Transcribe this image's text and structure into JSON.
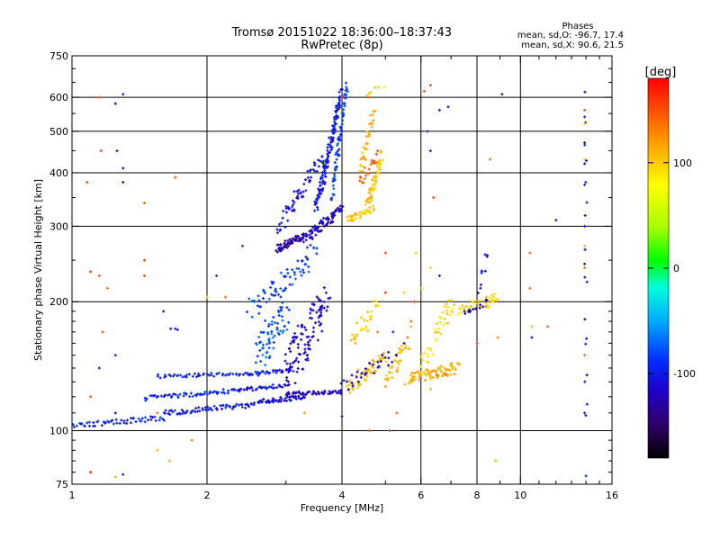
{
  "chart_data": {
    "type": "scatter",
    "title": "Tromsø 20151022 18:36:00–18:37:43",
    "subtitle": "RwPretec (8p)",
    "phase_info": {
      "heading": "Phases",
      "line_o": "mean, sd,O: -96.7, 17.4",
      "line_x": "mean, sd,X:  90.6, 21.5"
    },
    "xlabel": "Frequency [MHz]",
    "ylabel": "Stationary phase Virtual Height [km]",
    "x_scale": "log2",
    "y_scale": "log",
    "xlim": [
      1,
      16
    ],
    "ylim": [
      75,
      750
    ],
    "x_ticks": [
      1,
      2,
      4,
      6,
      8,
      10,
      16
    ],
    "x_tick_labels": [
      "1",
      "2",
      "4",
      "6",
      "8",
      "10",
      "16"
    ],
    "x_grid": [
      2,
      4,
      6,
      8,
      10
    ],
    "y_ticks": [
      75,
      100,
      200,
      300,
      400,
      500,
      600,
      750
    ],
    "y_tick_labels": [
      "75",
      "100",
      "200",
      "300",
      "400",
      "500",
      "600",
      "750"
    ],
    "y_grid": [
      100,
      200,
      300,
      400,
      500,
      600
    ],
    "grid": true,
    "colorbar": {
      "label": "[deg]",
      "range": [
        -180,
        180
      ],
      "ticks": [
        100,
        0,
        -100
      ],
      "tick_labels": [
        "100",
        "0",
        "-100"
      ]
    },
    "traces": [
      {
        "x0": 1.0,
        "x1": 1.6,
        "y0": 103,
        "y1": 107,
        "phase": -95,
        "n": 55,
        "jx": 0.02,
        "jy": 1.5
      },
      {
        "x0": 1.6,
        "x1": 2.6,
        "y0": 110,
        "y1": 115,
        "phase": -100,
        "n": 70,
        "jx": 0.02,
        "jy": 1.6
      },
      {
        "x0": 2.6,
        "x1": 3.3,
        "y0": 117,
        "y1": 120,
        "phase": -110,
        "n": 50,
        "jx": 0.02,
        "jy": 1.5
      },
      {
        "x0": 1.45,
        "x1": 2.3,
        "y0": 119,
        "y1": 124,
        "phase": -95,
        "n": 55,
        "jx": 0.02,
        "jy": 1.5
      },
      {
        "x0": 2.3,
        "x1": 3.0,
        "y0": 124,
        "y1": 128,
        "phase": -105,
        "n": 40,
        "jx": 0.02,
        "jy": 1.5
      },
      {
        "x0": 3.0,
        "x1": 4.0,
        "y0": 122,
        "y1": 123,
        "phase": -120,
        "n": 50,
        "jx": 0.02,
        "jy": 1.2
      },
      {
        "x0": 1.55,
        "x1": 2.5,
        "y0": 134,
        "y1": 136,
        "phase": -95,
        "n": 50,
        "jx": 0.02,
        "jy": 1.3
      },
      {
        "x0": 2.5,
        "x1": 3.1,
        "y0": 136,
        "y1": 138,
        "phase": -100,
        "n": 30,
        "jx": 0.02,
        "jy": 1.3
      },
      {
        "x0": 2.6,
        "x1": 3.0,
        "y0": 150,
        "y1": 190,
        "phase": -75,
        "n": 70,
        "jx": 0.06,
        "jy": 18
      },
      {
        "x0": 3.0,
        "x1": 3.7,
        "y0": 140,
        "y1": 200,
        "phase": -115,
        "n": 110,
        "jx": 0.06,
        "jy": 20
      },
      {
        "x0": 2.5,
        "x1": 3.5,
        "y0": 190,
        "y1": 260,
        "phase": -85,
        "n": 70,
        "jx": 0.06,
        "jy": 15
      },
      {
        "x0": 2.85,
        "x1": 3.3,
        "y0": 265,
        "y1": 285,
        "phase": -130,
        "n": 60,
        "jx": 0.03,
        "jy": 6
      },
      {
        "x0": 3.3,
        "x1": 4.0,
        "y0": 280,
        "y1": 330,
        "phase": -115,
        "n": 80,
        "jx": 0.03,
        "jy": 8
      },
      {
        "x0": 3.5,
        "x1": 4.0,
        "y0": 330,
        "y1": 620,
        "phase": -100,
        "n": 140,
        "jx": 0.03,
        "jy": 14
      },
      {
        "x0": 2.9,
        "x1": 3.6,
        "y0": 300,
        "y1": 430,
        "phase": -105,
        "n": 60,
        "jx": 0.05,
        "jy": 15
      },
      {
        "x0": 3.8,
        "x1": 4.1,
        "y0": 350,
        "y1": 640,
        "phase": -85,
        "n": 70,
        "jx": 0.02,
        "jy": 18
      },
      {
        "x0": 4.1,
        "x1": 4.7,
        "y0": 310,
        "y1": 330,
        "phase": 105,
        "n": 35,
        "jx": 0.03,
        "jy": 6
      },
      {
        "x0": 4.55,
        "x1": 4.9,
        "y0": 330,
        "y1": 440,
        "phase": 105,
        "n": 55,
        "jx": 0.03,
        "jy": 12
      },
      {
        "x0": 4.4,
        "x1": 4.7,
        "y0": 400,
        "y1": 560,
        "phase": 110,
        "n": 35,
        "jx": 0.03,
        "jy": 15
      },
      {
        "x0": 4.4,
        "x1": 4.8,
        "y0": 380,
        "y1": 440,
        "phase": 150,
        "n": 18,
        "jx": 0.03,
        "jy": 12
      },
      {
        "x0": 4.1,
        "x1": 5.0,
        "y0": 125,
        "y1": 150,
        "phase": 110,
        "n": 55,
        "jx": 0.05,
        "jy": 6
      },
      {
        "x0": 4.2,
        "x1": 4.8,
        "y0": 160,
        "y1": 200,
        "phase": 100,
        "n": 30,
        "jx": 0.05,
        "jy": 10
      },
      {
        "x0": 5.0,
        "x1": 5.6,
        "y0": 130,
        "y1": 160,
        "phase": 110,
        "n": 35,
        "jx": 0.05,
        "jy": 6
      },
      {
        "x0": 5.6,
        "x1": 7.2,
        "y0": 132,
        "y1": 140,
        "phase": 110,
        "n": 85,
        "jx": 0.05,
        "jy": 4
      },
      {
        "x0": 6.0,
        "x1": 7.0,
        "y0": 140,
        "y1": 200,
        "phase": 95,
        "n": 35,
        "jx": 0.05,
        "jy": 10
      },
      {
        "x0": 6.8,
        "x1": 8.8,
        "y0": 185,
        "y1": 205,
        "phase": 95,
        "n": 35,
        "jx": 0.05,
        "jy": 5
      },
      {
        "x0": 7.5,
        "x1": 8.5,
        "y0": 190,
        "y1": 200,
        "phase": -125,
        "n": 15,
        "jx": 0.05,
        "jy": 4
      },
      {
        "x0": 4.0,
        "x1": 5.2,
        "y0": 125,
        "y1": 150,
        "phase": -115,
        "n": 30,
        "jx": 0.05,
        "jy": 5
      },
      {
        "x0": 4.5,
        "x1": 4.9,
        "y0": 610,
        "y1": 640,
        "phase": 100,
        "n": 6,
        "jx": 0.05,
        "jy": 5
      },
      {
        "x0": 8.1,
        "x1": 8.4,
        "y0": 210,
        "y1": 260,
        "phase": -105,
        "n": 10,
        "jx": 0.04,
        "jy": 8
      },
      {
        "x0": 8.5,
        "x1": 8.8,
        "y0": 195,
        "y1": 205,
        "phase": 90,
        "n": 10,
        "jx": 0.04,
        "jy": 4
      },
      {
        "x0": 14.0,
        "x1": 14.0,
        "y0": 85,
        "y1": 600,
        "phase": -100,
        "n": 18,
        "jx": 0.02,
        "jy": 20
      }
    ],
    "points": [
      [
        1.15,
        600,
        150
      ],
      [
        1.25,
        580,
        -110
      ],
      [
        1.3,
        610,
        -105
      ],
      [
        1.08,
        380,
        150
      ],
      [
        1.16,
        450,
        160
      ],
      [
        1.26,
        450,
        -105
      ],
      [
        1.3,
        410,
        -110
      ],
      [
        1.3,
        380,
        -105
      ],
      [
        1.45,
        340,
        140
      ],
      [
        1.7,
        390,
        150
      ],
      [
        1.1,
        235,
        160
      ],
      [
        1.15,
        230,
        150
      ],
      [
        1.2,
        215,
        140
      ],
      [
        1.45,
        250,
        160
      ],
      [
        1.45,
        230,
        150
      ],
      [
        1.17,
        170,
        150
      ],
      [
        1.1,
        120,
        150
      ],
      [
        1.15,
        140,
        -110
      ],
      [
        1.25,
        150,
        -105
      ],
      [
        1.25,
        110,
        -110
      ],
      [
        1.55,
        90,
        110
      ],
      [
        1.65,
        85,
        110
      ],
      [
        1.1,
        80,
        170
      ],
      [
        1.25,
        78,
        110
      ],
      [
        1.3,
        79,
        -95
      ],
      [
        1.55,
        110,
        140
      ],
      [
        1.6,
        190,
        -110
      ],
      [
        1.66,
        173,
        -100
      ],
      [
        1.7,
        173,
        -105
      ],
      [
        1.72,
        172,
        -100
      ],
      [
        2.1,
        230,
        -95
      ],
      [
        2.0,
        205,
        110
      ],
      [
        2.2,
        205,
        140
      ],
      [
        2.4,
        270,
        -90
      ],
      [
        1.85,
        95,
        130
      ],
      [
        3.3,
        110,
        120
      ],
      [
        4.0,
        108,
        -105
      ],
      [
        5.1,
        100,
        150
      ],
      [
        4.0,
        600,
        150
      ],
      [
        4.6,
        600,
        150
      ],
      [
        6.1,
        620,
        150
      ],
      [
        6.3,
        640,
        160
      ],
      [
        5.0,
        260,
        150
      ],
      [
        5.0,
        210,
        160
      ],
      [
        5.2,
        170,
        -105
      ],
      [
        5.7,
        175,
        110
      ],
      [
        5.85,
        260,
        100
      ],
      [
        6.4,
        350,
        150
      ],
      [
        6.6,
        560,
        -110
      ],
      [
        6.9,
        570,
        -110
      ],
      [
        6.2,
        500,
        -105
      ],
      [
        6.3,
        450,
        -100
      ],
      [
        9.1,
        610,
        -115
      ],
      [
        8.55,
        430,
        140
      ],
      [
        8.8,
        85,
        30
      ],
      [
        8.9,
        165,
        130
      ],
      [
        10.5,
        260,
        140
      ],
      [
        10.5,
        215,
        140
      ],
      [
        10.6,
        175,
        30
      ],
      [
        10.6,
        165,
        -105
      ],
      [
        11.5,
        175,
        140
      ],
      [
        12.0,
        310,
        -100
      ],
      [
        13.9,
        560,
        150
      ],
      [
        13.9,
        430,
        100
      ],
      [
        13.9,
        470,
        120
      ],
      [
        13.9,
        520,
        90
      ],
      [
        13.9,
        540,
        -90
      ],
      [
        13.9,
        470,
        -110
      ],
      [
        13.9,
        420,
        -120
      ],
      [
        13.9,
        375,
        -100
      ],
      [
        13.9,
        300,
        -100
      ],
      [
        13.9,
        270,
        110
      ],
      [
        13.9,
        245,
        -105
      ],
      [
        13.9,
        240,
        140
      ],
      [
        13.9,
        150,
        140
      ],
      [
        13.9,
        110,
        -110
      ],
      [
        8.0,
        160,
        150
      ],
      [
        7.5,
        190,
        -105
      ],
      [
        6.8,
        135,
        140
      ],
      [
        6.3,
        125,
        110
      ],
      [
        6.0,
        215,
        30
      ],
      [
        6.3,
        240,
        100
      ],
      [
        6.6,
        230,
        -105
      ],
      [
        5.5,
        210,
        100
      ],
      [
        5.7,
        180,
        140
      ],
      [
        5.8,
        200,
        150
      ],
      [
        4.6,
        100,
        150
      ],
      [
        5.3,
        110,
        140
      ],
      [
        5.5,
        160,
        -110
      ],
      [
        5.6,
        165,
        140
      ],
      [
        6.5,
        135,
        140
      ],
      [
        4.8,
        170,
        140
      ]
    ]
  }
}
